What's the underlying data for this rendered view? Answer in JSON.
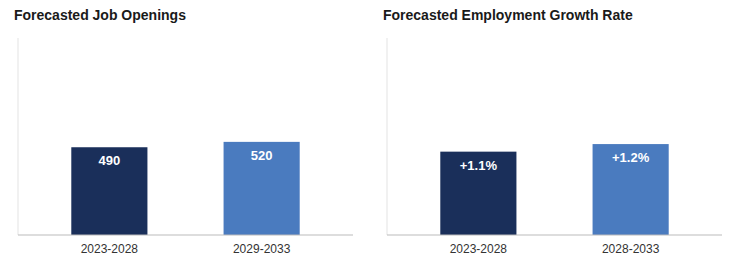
{
  "chart_data": [
    {
      "type": "bar",
      "title": "Forecasted Job Openings",
      "categories": [
        "2023-2028",
        "2029-2033"
      ],
      "values": [
        490,
        520
      ],
      "colors": [
        "#1a2f5a",
        "#4a7bbf"
      ],
      "ylim": [
        0,
        1100
      ],
      "data_labels": true,
      "tick_labels": "x",
      "grid": false
    },
    {
      "type": "bar",
      "title": "Forecasted Employment Growth Rate",
      "categories": [
        "2023-2028",
        "2028-2033"
      ],
      "values": [
        1.1,
        1.2
      ],
      "value_labels": [
        "+1.1%",
        "+1.2%"
      ],
      "colors": [
        "#1a2f5a",
        "#4a7bbf"
      ],
      "ylim": [
        0,
        2.6
      ],
      "data_labels": true,
      "tick_labels": "x",
      "grid": false
    }
  ]
}
